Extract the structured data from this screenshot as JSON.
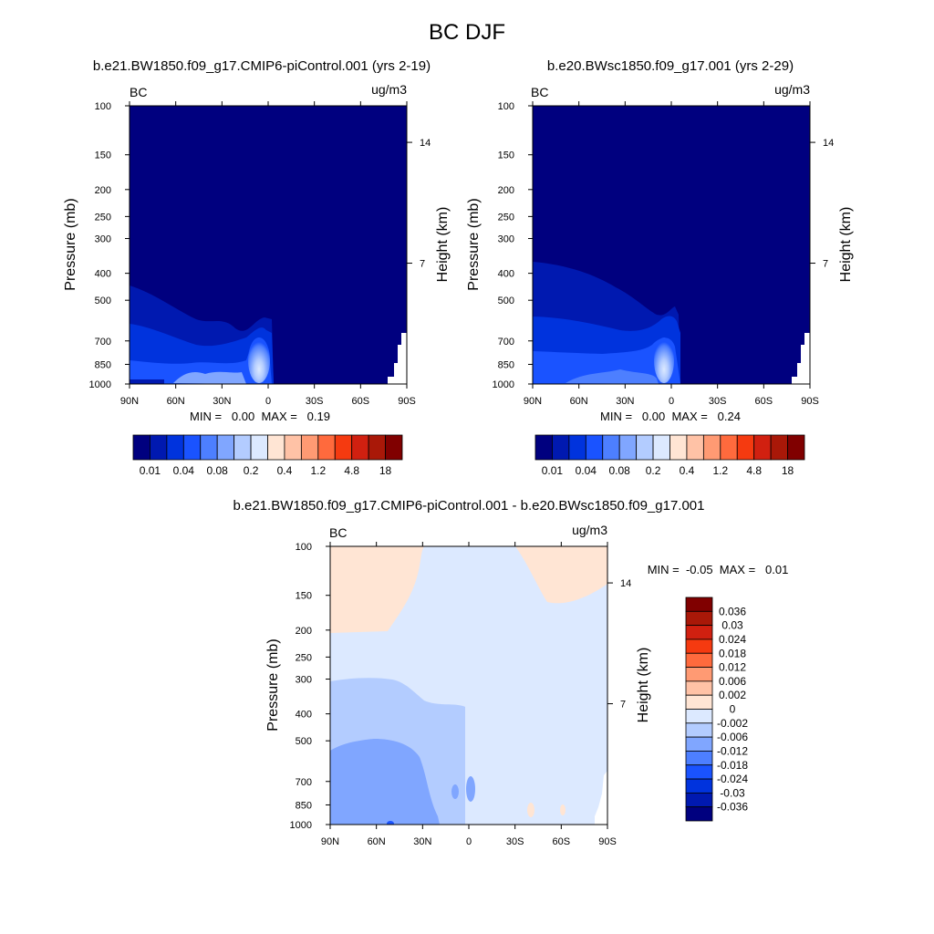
{
  "page_title": "BC DJF",
  "chart_data": [
    {
      "type": "heatmap",
      "title": "b.e21.BW1850.f09_g17.CMIP6-piControl.001 (yrs 2-19)",
      "variable": "BC",
      "units": "ug/m3",
      "ylabel": "Pressure (mb)",
      "ylabel_right": "Height (km)",
      "x_ticks": [
        "90N",
        "60N",
        "30N",
        "0",
        "30S",
        "60S",
        "90S"
      ],
      "y_ticks": [
        "100",
        "150",
        "200",
        "250",
        "300",
        "400",
        "500",
        "700",
        "850",
        "1000"
      ],
      "right_ticks": [
        "14",
        "7"
      ],
      "min": "0.00",
      "max": "0.19",
      "stats_text": "MIN =   0.00  MAX =   0.19",
      "colorbar_labels": [
        "0.01",
        "0.04",
        "0.08",
        "0.2",
        "0.4",
        "1.2",
        "4.8",
        "18"
      ],
      "colorbar_colors": [
        "#00007f",
        "#0019b0",
        "#0033dd",
        "#1a53ff",
        "#4d7fff",
        "#80a6ff",
        "#b3ccff",
        "#dce9ff",
        "#ffe5d4",
        "#ffc2a6",
        "#ff9a73",
        "#ff6a3d",
        "#f53a10",
        "#d12010",
        "#a91808",
        "#800000"
      ],
      "peak_lat": "10N",
      "peak_level_mb": "850"
    },
    {
      "type": "heatmap",
      "title": "b.e20.BWsc1850.f09_g17.001 (yrs 2-29)",
      "variable": "BC",
      "units": "ug/m3",
      "ylabel": "Pressure (mb)",
      "ylabel_right": "Height (km)",
      "x_ticks": [
        "90N",
        "60N",
        "30N",
        "0",
        "30S",
        "60S",
        "90S"
      ],
      "y_ticks": [
        "100",
        "150",
        "200",
        "250",
        "300",
        "400",
        "500",
        "700",
        "850",
        "1000"
      ],
      "right_ticks": [
        "14",
        "7"
      ],
      "min": "0.00",
      "max": "0.24",
      "stats_text": "MIN =   0.00  MAX =   0.24",
      "colorbar_labels": [
        "0.01",
        "0.04",
        "0.08",
        "0.2",
        "0.4",
        "1.2",
        "4.8",
        "18"
      ],
      "colorbar_colors": [
        "#00007f",
        "#0019b0",
        "#0033dd",
        "#1a53ff",
        "#4d7fff",
        "#80a6ff",
        "#b3ccff",
        "#dce9ff",
        "#ffe5d4",
        "#ffc2a6",
        "#ff9a73",
        "#ff6a3d",
        "#f53a10",
        "#d12010",
        "#a91808",
        "#800000"
      ],
      "peak_lat": "10N",
      "peak_level_mb": "850"
    },
    {
      "type": "heatmap",
      "title": "b.e21.BW1850.f09_g17.CMIP6-piControl.001 - b.e20.BWsc1850.f09_g17.001",
      "variable": "BC",
      "units": "ug/m3",
      "ylabel": "Pressure (mb)",
      "ylabel_right": "Height (km)",
      "x_ticks": [
        "90N",
        "60N",
        "30N",
        "0",
        "30S",
        "60S",
        "90S"
      ],
      "y_ticks": [
        "100",
        "150",
        "200",
        "250",
        "300",
        "400",
        "500",
        "700",
        "850",
        "1000"
      ],
      "right_ticks": [
        "14",
        "7"
      ],
      "min": "-0.05",
      "max": "0.01",
      "stats_text": "MIN =  -0.05  MAX =   0.01",
      "colorbar_labels": [
        "0.036",
        "0.03",
        "0.024",
        "0.018",
        "0.012",
        "0.006",
        "0.002",
        "0",
        "-0.002",
        "-0.006",
        "-0.012",
        "-0.018",
        "-0.024",
        "-0.03",
        "-0.036"
      ],
      "colorbar_colors": [
        "#800000",
        "#a91808",
        "#d12010",
        "#f53a10",
        "#ff6a3d",
        "#ff9a73",
        "#ffc2a6",
        "#ffe5d4",
        "#dce9ff",
        "#b3ccff",
        "#80a6ff",
        "#4d7fff",
        "#1a53ff",
        "#0033dd",
        "#0019b0",
        "#00007f"
      ]
    }
  ]
}
